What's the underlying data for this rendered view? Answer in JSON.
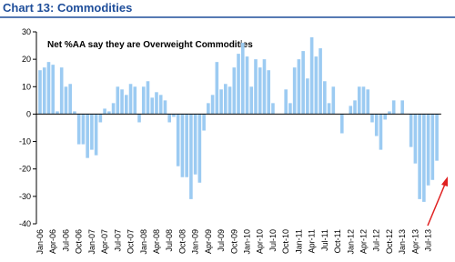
{
  "chart_data": {
    "type": "bar",
    "title": "Chart 13: Commodities",
    "annotation": "Net %AA say they are Overweight Commodities",
    "categories": [
      "Jan-06",
      null,
      null,
      "Apr-06",
      null,
      null,
      "Jul-06",
      null,
      null,
      "Oct-06",
      null,
      null,
      "Jan-07",
      null,
      null,
      "Apr-07",
      null,
      null,
      "Jul-07",
      null,
      null,
      "Oct-07",
      null,
      null,
      "Jan-08",
      null,
      null,
      "Apr-08",
      null,
      null,
      "Jul-08",
      null,
      null,
      "Oct-08",
      null,
      null,
      "Jan-09",
      null,
      null,
      "Apr-09",
      null,
      null,
      "Jul-09",
      null,
      null,
      "Oct-09",
      null,
      null,
      "Jan-10",
      null,
      null,
      "Apr-10",
      null,
      null,
      "Jul-10",
      null,
      null,
      "Oct-10",
      null,
      null,
      "Jan-11",
      null,
      null,
      "Apr-11",
      null,
      null,
      "Jul-11",
      null,
      null,
      "Oct-11",
      null,
      null,
      "Jan-12",
      null,
      null,
      "Apr-12",
      null,
      null,
      "Jul-12",
      null,
      null,
      "Oct-12",
      null,
      null,
      "Jan-13",
      null,
      null,
      "Apr-13",
      null,
      null,
      "Jul-13",
      null,
      null
    ],
    "values": [
      16,
      17,
      19,
      18,
      1,
      17,
      10,
      11,
      1,
      -11,
      -11,
      -16,
      -13,
      -15,
      -3,
      2,
      1,
      4,
      10,
      9,
      7,
      11,
      10,
      -3,
      10,
      12,
      6,
      8,
      7,
      5,
      -3,
      -1,
      -19,
      -23,
      -23,
      -31,
      -22,
      -25,
      -6,
      4,
      7,
      19,
      9,
      11,
      10,
      17,
      22,
      26,
      21,
      10,
      20,
      17,
      20,
      16,
      4,
      0,
      0,
      9,
      4,
      17,
      20,
      23,
      13,
      28,
      21,
      24,
      12,
      4,
      10,
      0,
      -7,
      0,
      3,
      5,
      10,
      10,
      9,
      -3,
      -8,
      -13,
      -2,
      1,
      5,
      0,
      5,
      0,
      -12,
      -18,
      -31,
      -32,
      -26,
      -24,
      -17
    ],
    "color": "#9ccbf2",
    "ylim": [
      -40,
      30
    ],
    "yticks": [
      -40,
      -30,
      -20,
      -10,
      0,
      10,
      20,
      30
    ]
  }
}
